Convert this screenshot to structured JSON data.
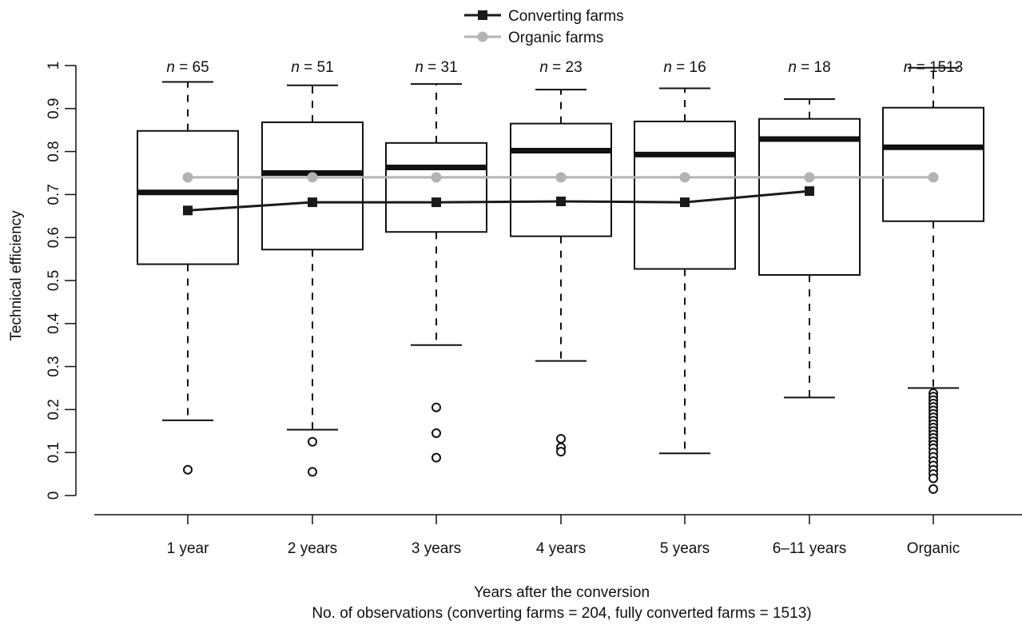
{
  "chart_data": {
    "type": "boxplot",
    "xlabel": "Years after the conversion",
    "xlabel_sub": "No. of observations (converting farms = 204, fully converted farms = 1513)",
    "ylabel": "Technical efficiency",
    "ylim": [
      0,
      1
    ],
    "yticks": [
      "0",
      "0.1",
      "0.2",
      "0.3",
      "0.4",
      "0.5",
      "0.6",
      "0.7",
      "0.8",
      "0.9",
      "1"
    ],
    "grid": false,
    "legend_position": "top-center",
    "categories": [
      "1 year",
      "2 years",
      "3 years",
      "4 years",
      "5 years",
      "6–11 years",
      "Organic"
    ],
    "n_prefix": "n",
    "n_labels": [
      "= 65",
      "= 51",
      "= 31",
      "= 23",
      "= 16",
      "= 18",
      "= 1513"
    ],
    "boxes": [
      {
        "whisker_low": 0.175,
        "q1": 0.538,
        "median": 0.705,
        "q3": 0.848,
        "whisker_high": 0.962,
        "outliers": [
          0.06
        ]
      },
      {
        "whisker_low": 0.153,
        "q1": 0.572,
        "median": 0.75,
        "q3": 0.868,
        "whisker_high": 0.954,
        "outliers": [
          0.125,
          0.055
        ]
      },
      {
        "whisker_low": 0.35,
        "q1": 0.613,
        "median": 0.763,
        "q3": 0.82,
        "whisker_high": 0.957,
        "outliers": [
          0.205,
          0.145,
          0.088
        ]
      },
      {
        "whisker_low": 0.313,
        "q1": 0.603,
        "median": 0.802,
        "q3": 0.865,
        "whisker_high": 0.944,
        "outliers": [
          0.132,
          0.112,
          0.102
        ]
      },
      {
        "whisker_low": 0.098,
        "q1": 0.527,
        "median": 0.793,
        "q3": 0.87,
        "whisker_high": 0.947,
        "outliers": []
      },
      {
        "whisker_low": 0.228,
        "q1": 0.513,
        "median": 0.829,
        "q3": 0.876,
        "whisker_high": 0.922,
        "outliers": []
      },
      {
        "whisker_low": 0.25,
        "q1": 0.638,
        "median": 0.81,
        "q3": 0.902,
        "whisker_high": 0.995,
        "outliers": [
          0.238,
          0.23,
          0.222,
          0.214,
          0.206,
          0.198,
          0.19,
          0.182,
          0.174,
          0.166,
          0.158,
          0.15,
          0.142,
          0.134,
          0.126,
          0.118,
          0.11,
          0.1,
          0.09,
          0.08,
          0.07,
          0.06,
          0.05,
          0.04,
          0.015
        ]
      }
    ],
    "series": [
      {
        "name": "Converting farms",
        "color": "#1a1a1a",
        "marker": "square",
        "values": [
          0.663,
          0.682,
          0.682,
          0.684,
          0.682,
          0.708,
          null
        ]
      },
      {
        "name": "Organic farms",
        "color": "#b3b3b3",
        "marker": "circle",
        "values": [
          0.74,
          0.74,
          0.74,
          0.74,
          0.74,
          0.74,
          0.74
        ]
      }
    ]
  }
}
